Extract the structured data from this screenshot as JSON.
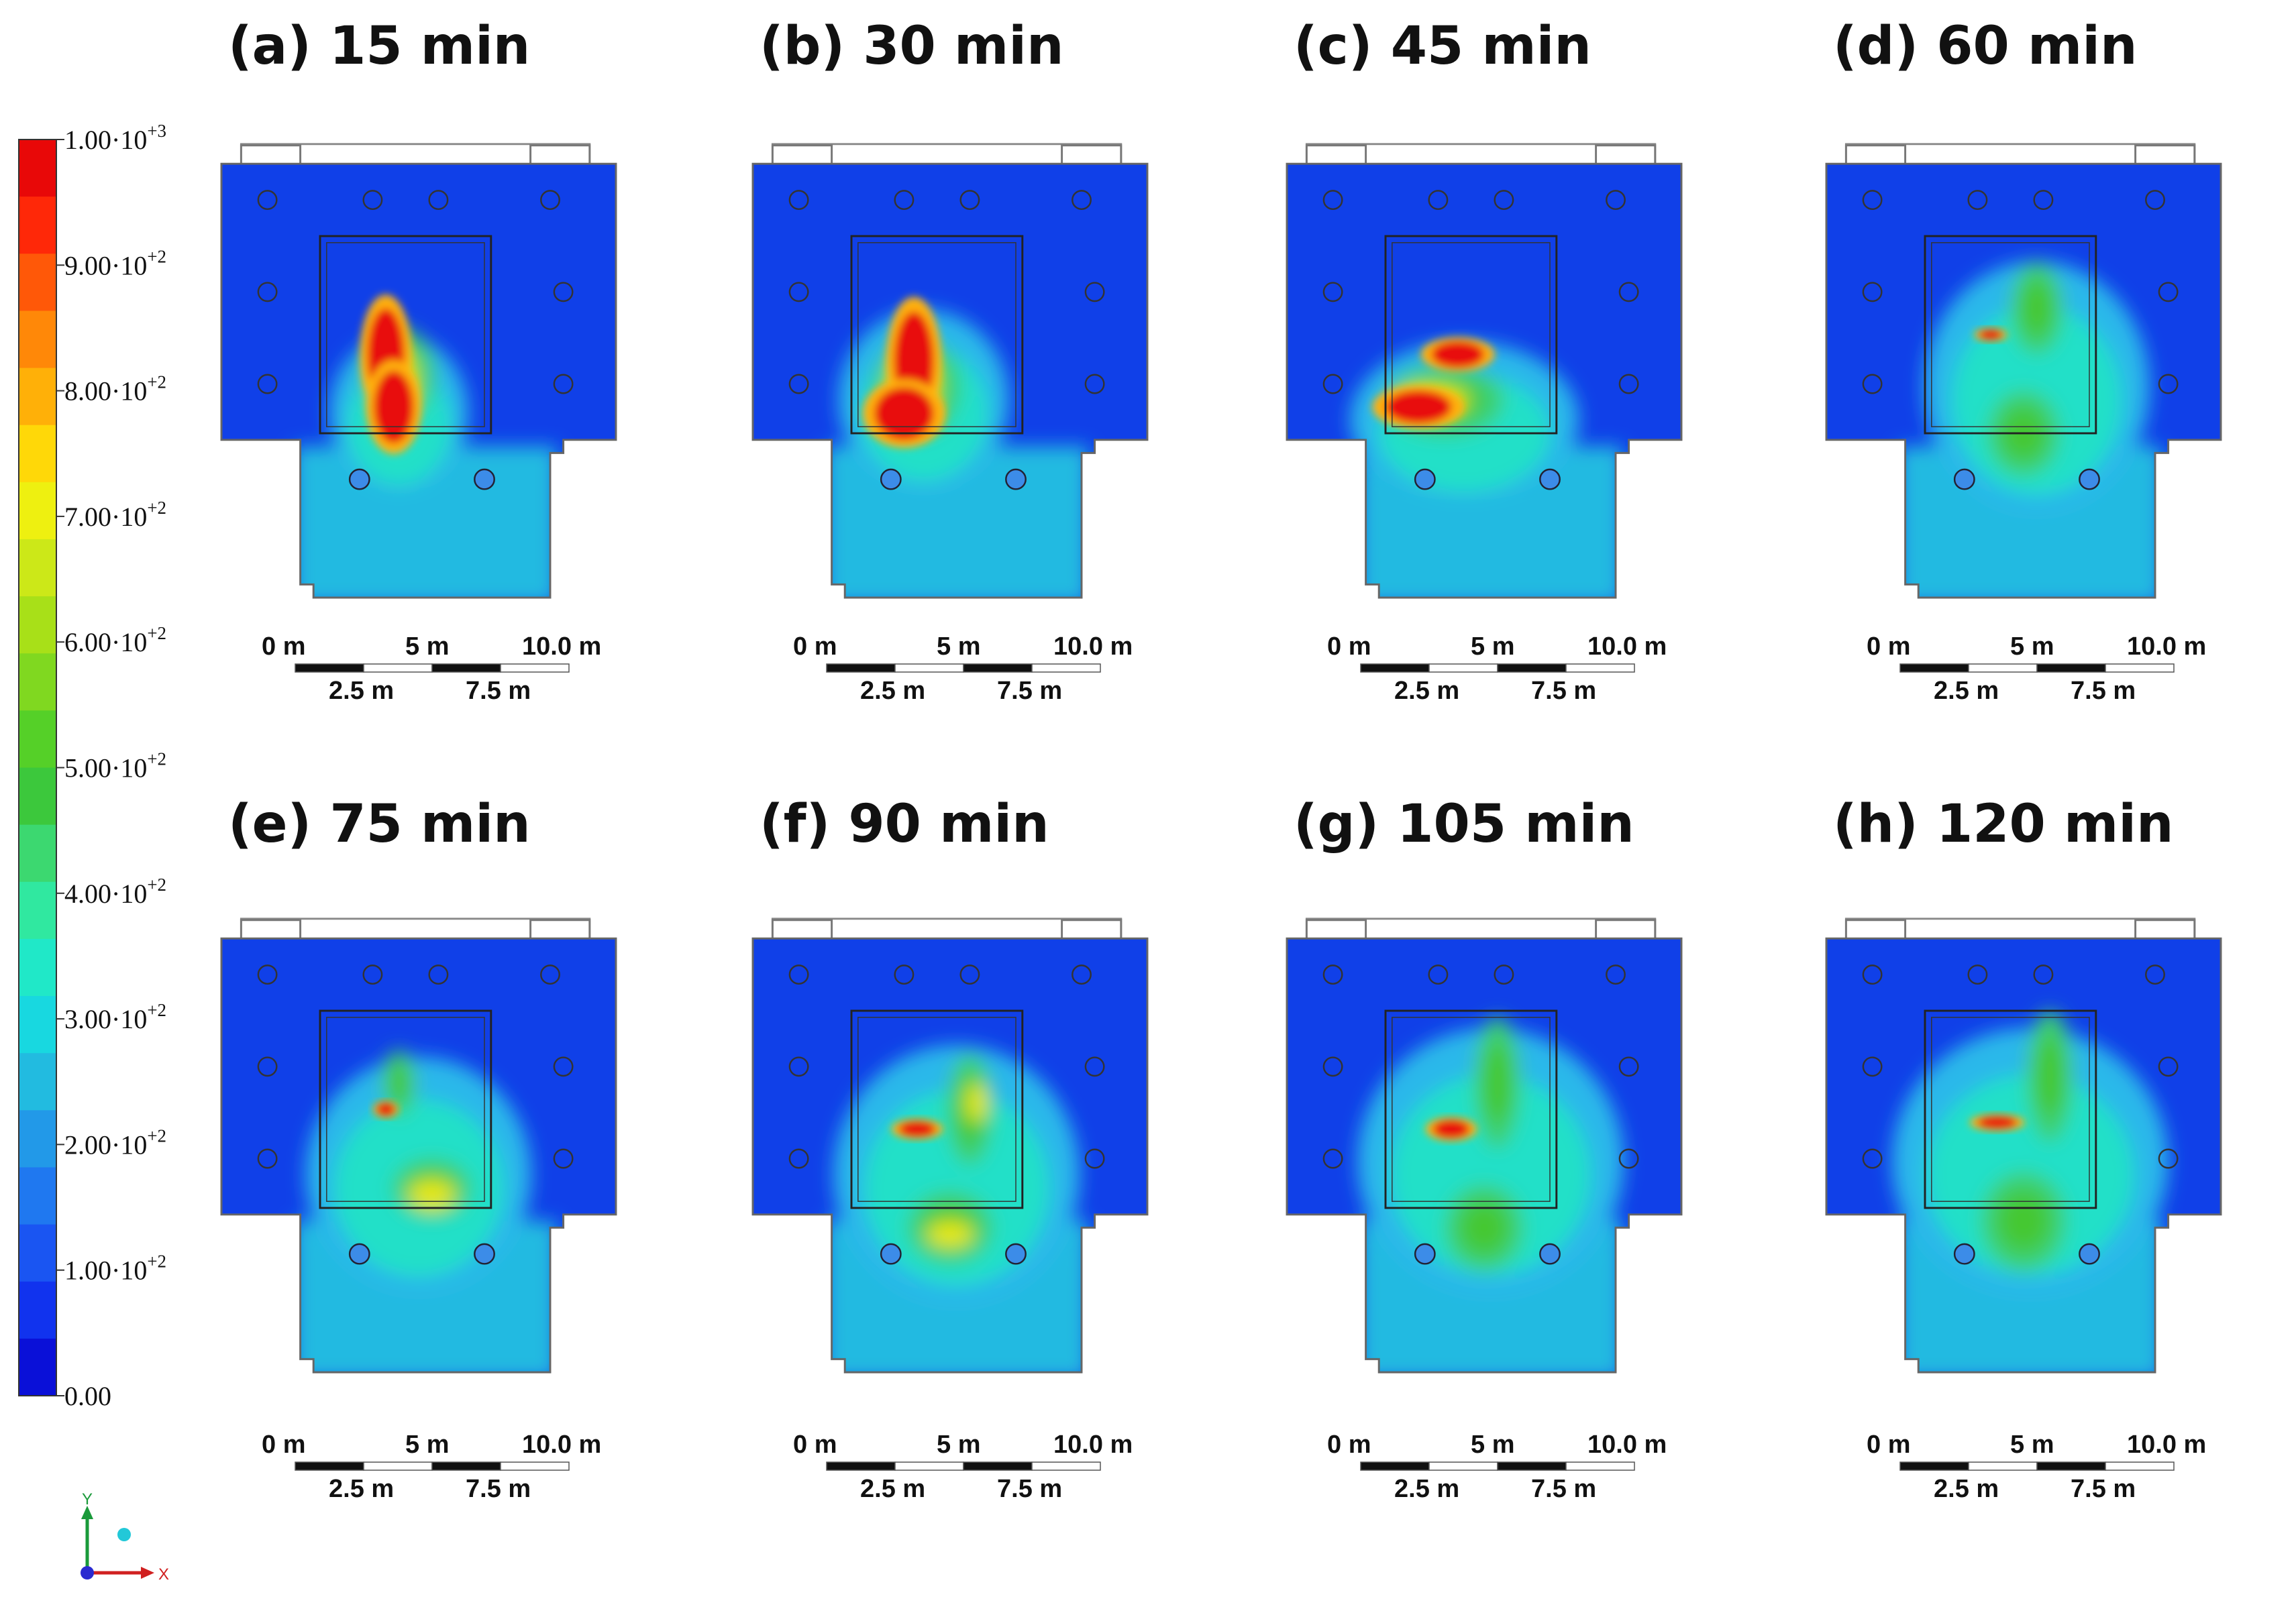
{
  "panels": [
    {
      "title": "(a) 15 min"
    },
    {
      "title": "(b) 30 min"
    },
    {
      "title": "(c) 45 min"
    },
    {
      "title": "(d) 60 min"
    },
    {
      "title": "(e) 75 min"
    },
    {
      "title": "(f) 90 min"
    },
    {
      "title": "(g) 105 min"
    },
    {
      "title": "(h) 120 min"
    }
  ],
  "colorbar": {
    "labels": [
      {
        "mant": "1.00·10",
        "exp": "+3"
      },
      {
        "mant": "9.00·10",
        "exp": "+2"
      },
      {
        "mant": "8.00·10",
        "exp": "+2"
      },
      {
        "mant": "7.00·10",
        "exp": "+2"
      },
      {
        "mant": "6.00·10",
        "exp": "+2"
      },
      {
        "mant": "5.00·10",
        "exp": "+2"
      },
      {
        "mant": "4.00·10",
        "exp": "+2"
      },
      {
        "mant": "3.00·10",
        "exp": "+2"
      },
      {
        "mant": "2.00·10",
        "exp": "+2"
      },
      {
        "mant": "1.00·10",
        "exp": "+2"
      },
      {
        "mant": "0.00",
        "exp": ""
      }
    ],
    "colors": [
      "#0a10d8",
      "#1133ee",
      "#1a55f2",
      "#1f78f0",
      "#2299e8",
      "#22bbe0",
      "#18d8e0",
      "#20e8c8",
      "#30e8a0",
      "#3cd870",
      "#3cc83c",
      "#55d028",
      "#80d820",
      "#a8e018",
      "#cce818",
      "#eef010",
      "#ffd808",
      "#ffb008",
      "#ff8808",
      "#ff5808",
      "#ff2808",
      "#e80808"
    ]
  },
  "scalebar": {
    "top_labels": [
      "0 m",
      "5 m",
      "10.0 m"
    ],
    "bottom_labels": [
      "2.5 m",
      "7.5 m"
    ]
  },
  "axes_triad": {
    "y": "Y",
    "x": "X"
  }
}
